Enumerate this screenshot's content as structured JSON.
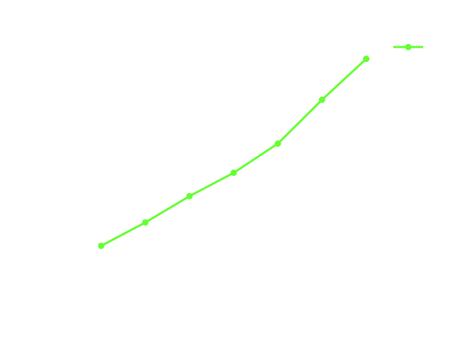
{
  "chart_data": {
    "type": "line",
    "title": "",
    "xlabel": "",
    "ylabel": "",
    "x": [
      1,
      2,
      3,
      4,
      5,
      6,
      7
    ],
    "series": [
      {
        "values": [
          1.0,
          1.4,
          1.85,
          2.25,
          2.75,
          3.5,
          4.2
        ],
        "color": "#66ff33",
        "marker": "circle"
      }
    ],
    "xlim": [
      0,
      8
    ],
    "ylim": [
      0.0,
      4.5
    ],
    "grid": false,
    "axes_visible": false,
    "legend": {
      "visible": true,
      "placement": "top-right"
    }
  }
}
